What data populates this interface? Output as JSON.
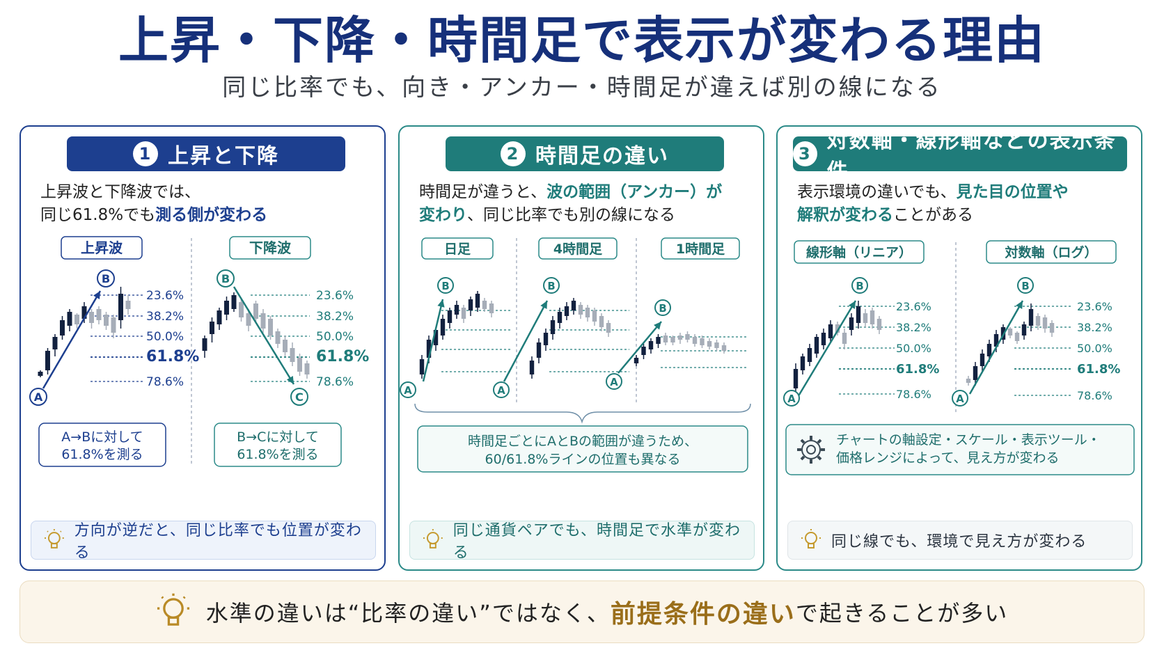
{
  "title": "上昇・下降・時間足で表示が変わる理由",
  "subtitle": "同じ比率でも、向き・アンカー・時間足が違えば別の線になる",
  "colors": {
    "navy": "#1d3f8f",
    "teal": "#1f7c7a",
    "gold": "#9a6e1a"
  },
  "panels": [
    {
      "num": "1",
      "title": "上昇と下降",
      "desc_pre": "上昇波と下降波では、",
      "desc_line2_pre": "同じ61.8%でも",
      "desc_hl": "測る側が変わる",
      "charts": [
        {
          "tag": "上昇波",
          "start": "A",
          "end": "B",
          "note": "A→Bに対して\n61.8%を測る"
        },
        {
          "tag": "下降波",
          "start": "B",
          "end": "C",
          "note": "B→Cに対して\n61.8%を測る"
        }
      ],
      "tip": "方向が逆だと、同じ比率でも位置が変わる",
      "tip_icon": "lightbulb-icon"
    },
    {
      "num": "2",
      "title": "時間足の違い",
      "desc_pre": "時間足が違うと、",
      "desc_hl1": "波の範囲（アンカー）が",
      "desc_hl2": "変わり",
      "desc_post": "、同じ比率でも別の線になる",
      "charts": [
        {
          "tag": "日足"
        },
        {
          "tag": "4時間足"
        },
        {
          "tag": "1時間足"
        }
      ],
      "note": "時間足ごとにAとBの範囲が違うため、\n60/61.8%ラインの位置も異なる",
      "tip": "同じ通貨ペアでも、時間足で水準が変わる",
      "tip_icon": "lightbulb-icon"
    },
    {
      "num": "3",
      "title": "対数軸・線形軸などの表示条件",
      "desc_pre": "表示環境の違いでも、",
      "desc_hl1": "見た目の位置や",
      "desc_hl2": "解釈が変わる",
      "desc_post": "ことがある",
      "charts": [
        {
          "tag": "線形軸（リニア）"
        },
        {
          "tag": "対数軸（ログ）"
        }
      ],
      "note": "チャートの軸設定・スケール・表示ツール・\n価格レンジによって、見え方が変わる",
      "note_icon": "gear-icon",
      "tip": "同じ線でも、環境で見え方が変わる",
      "tip_icon": "lightbulb-icon"
    }
  ],
  "fib_levels": [
    "23.6%",
    "38.2%",
    "50.0%",
    "61.8%",
    "78.6%"
  ],
  "point_labels": {
    "a": "A",
    "b": "B",
    "c": "C"
  },
  "footer": {
    "pre": "水準の違いは“比率の違い”ではなく、",
    "hl": "前提条件の違い",
    "post": "で起きることが多い",
    "icon": "lightbulb-icon"
  }
}
